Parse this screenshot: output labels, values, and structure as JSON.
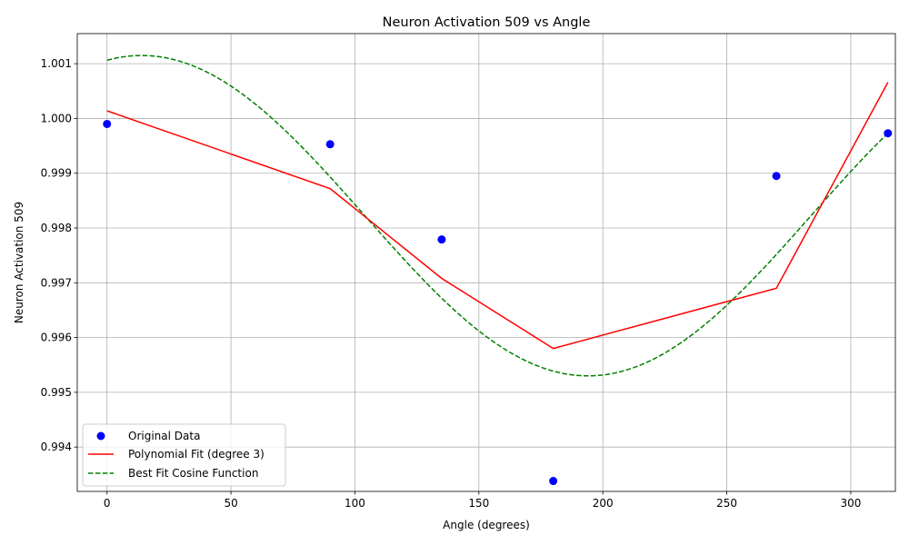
{
  "chart_data": {
    "type": "line",
    "title": "Neuron Activation 509 vs Angle",
    "xlabel": "Angle (degrees)",
    "ylabel": "Neuron Activation 509",
    "xlim": [
      -12,
      318
    ],
    "ylim": [
      0.99319,
      1.00155
    ],
    "x_ticks": [
      0,
      50,
      100,
      150,
      200,
      250,
      300
    ],
    "x_tick_labels": [
      "0",
      "50",
      "100",
      "150",
      "200",
      "250",
      "300"
    ],
    "y_ticks": [
      0.994,
      0.995,
      0.996,
      0.997,
      0.998,
      0.999,
      1.0,
      1.001
    ],
    "y_tick_labels": [
      "0.994",
      "0.995",
      "0.996",
      "0.997",
      "0.998",
      "0.999",
      "1.000",
      "1.001"
    ],
    "grid": true,
    "legend_position": "lower-left",
    "series": [
      {
        "name": "Original Data",
        "kind": "scatter",
        "color": "#0000ff",
        "x": [
          0,
          90,
          135,
          180,
          270,
          315
        ],
        "y": [
          0.9999,
          0.99953,
          0.99779,
          0.99338,
          0.99895,
          0.99973
        ]
      },
      {
        "name": "Polynomial Fit (degree 3)",
        "kind": "line",
        "color": "#ff0000",
        "x": [
          0,
          90,
          135,
          180,
          270,
          315
        ],
        "y": [
          1.00014,
          0.99872,
          0.99708,
          0.9958,
          0.9969,
          1.00066
        ]
      },
      {
        "name": "Best Fit Cosine Function",
        "kind": "dashed-line",
        "color": "#008000",
        "offset": 0.998225,
        "amplitude": 0.002925,
        "phase_deg": 14,
        "x_range": [
          0,
          315
        ]
      }
    ]
  }
}
